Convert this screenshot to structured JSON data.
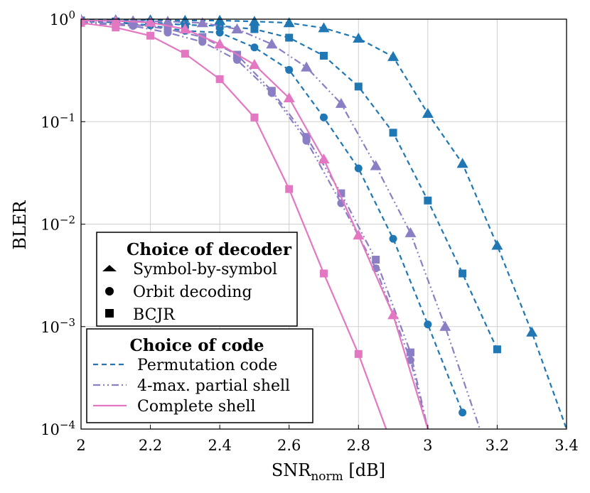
{
  "chart_data": {
    "type": "line",
    "xlabel": "SNR",
    "xlabel_subscript": "norm",
    "xlabel_unit": "[dB]",
    "ylabel": "BLER",
    "xlim": [
      2,
      3.4
    ],
    "ylim": [
      0.0001,
      1
    ],
    "yscale": "log",
    "grid": true,
    "x_ticks": [
      2,
      2.2,
      2.4,
      2.6,
      2.8,
      3,
      3.2,
      3.4
    ],
    "x_tick_labels": [
      "2",
      "2.2",
      "2.4",
      "2.6",
      "2.8",
      "3",
      "3.2",
      "3.4"
    ],
    "y_ticks": [
      1,
      0.1,
      0.01,
      0.001,
      0.0001
    ],
    "y_tick_labels": [
      {
        "base": "10",
        "exp": "0"
      },
      {
        "base": "10",
        "exp": "−1"
      },
      {
        "base": "10",
        "exp": "−2"
      },
      {
        "base": "10",
        "exp": "−3"
      },
      {
        "base": "10",
        "exp": "−4"
      }
    ],
    "colors": {
      "permutation": "#1f77b4",
      "partial_shell": "#8c7ec4",
      "complete_shell": "#e377c2",
      "permutation_marker": "#1f77b4",
      "partial_marker": "#8c7ec4",
      "complete_marker": "#e377c2"
    },
    "series": [
      {
        "code": "permutation",
        "decoder": "symbol",
        "line": "dashed",
        "x": [
          2.0,
          2.1,
          2.2,
          2.3,
          2.4,
          2.5,
          2.6,
          2.7,
          2.8,
          2.9,
          3.0,
          3.1,
          3.2,
          3.3,
          3.4
        ],
        "y": [
          0.99,
          0.98,
          0.98,
          0.97,
          0.97,
          0.95,
          0.92,
          0.82,
          0.65,
          0.43,
          0.12,
          0.039,
          0.0062,
          0.00088,
          0.0001
        ]
      },
      {
        "code": "permutation",
        "decoder": "orbit",
        "line": "dashed",
        "x": [
          2.0,
          2.1,
          2.2,
          2.3,
          2.4,
          2.5,
          2.6,
          2.7,
          2.8,
          2.9,
          3.0,
          3.1
        ],
        "y": [
          0.95,
          0.93,
          0.87,
          0.77,
          0.74,
          0.53,
          0.32,
          0.11,
          0.035,
          0.0072,
          0.00105,
          0.000145
        ]
      },
      {
        "code": "permutation",
        "decoder": "bcjr",
        "line": "dashed",
        "x": [
          2.0,
          2.1,
          2.2,
          2.3,
          2.4,
          2.5,
          2.6,
          2.7,
          2.8,
          2.9,
          3.0,
          3.1,
          3.2
        ],
        "y": [
          0.97,
          0.95,
          0.93,
          0.88,
          0.86,
          0.8,
          0.66,
          0.44,
          0.22,
          0.078,
          0.017,
          0.0033,
          0.0006
        ]
      },
      {
        "code": "partial_shell",
        "decoder": "symbol",
        "line": "dashdot",
        "x": [
          2.0,
          2.15,
          2.25,
          2.35,
          2.45,
          2.55,
          2.65,
          2.75,
          2.85,
          2.95,
          3.05,
          3.15
        ],
        "y": [
          0.97,
          0.96,
          0.95,
          0.92,
          0.8,
          0.57,
          0.34,
          0.15,
          0.037,
          0.0082,
          0.001,
          0.0001
        ]
      },
      {
        "code": "partial_shell",
        "decoder": "orbit",
        "line": "dashdot",
        "x": [
          2.0,
          2.15,
          2.25,
          2.35,
          2.45,
          2.55,
          2.65,
          2.75,
          2.85,
          2.95,
          3.0
        ],
        "y": [
          0.92,
          0.86,
          0.74,
          0.6,
          0.4,
          0.19,
          0.065,
          0.016,
          0.0037,
          0.00047,
          0.0001
        ]
      },
      {
        "code": "partial_shell",
        "decoder": "bcjr",
        "line": "dashdot",
        "x": [
          2.0,
          2.15,
          2.25,
          2.35,
          2.45,
          2.55,
          2.65,
          2.75,
          2.85,
          2.95,
          3.0
        ],
        "y": [
          0.94,
          0.89,
          0.8,
          0.67,
          0.45,
          0.2,
          0.071,
          0.02,
          0.0045,
          0.00056,
          0.0001
        ]
      },
      {
        "code": "complete_shell",
        "decoder": "symbol",
        "line": "solid",
        "x": [
          2.0,
          2.1,
          2.2,
          2.3,
          2.4,
          2.5,
          2.6,
          2.7,
          2.8,
          2.9,
          3.0
        ],
        "y": [
          0.97,
          0.96,
          0.93,
          0.8,
          0.57,
          0.36,
          0.17,
          0.043,
          0.0078,
          0.0013,
          0.0001
        ]
      },
      {
        "code": "complete_shell",
        "decoder": "bcjr",
        "line": "solid",
        "x": [
          2.0,
          2.1,
          2.2,
          2.3,
          2.4,
          2.5,
          2.6,
          2.7,
          2.8,
          2.88
        ],
        "y": [
          0.92,
          0.83,
          0.69,
          0.46,
          0.26,
          0.11,
          0.022,
          0.0033,
          0.00054,
          0.0001
        ]
      }
    ],
    "legend_decoder": {
      "title": "Choice of decoder",
      "entries": [
        {
          "marker": "triangle",
          "label": "Symbol-by-symbol"
        },
        {
          "marker": "circle",
          "label": "Orbit decoding"
        },
        {
          "marker": "square",
          "label": "BCJR"
        }
      ]
    },
    "legend_code": {
      "title": "Choice of code",
      "entries": [
        {
          "line": "dashed",
          "color_key": "permutation",
          "label": "Permutation code"
        },
        {
          "line": "dashdot",
          "color_key": "partial_shell",
          "label": "4-max. partial shell"
        },
        {
          "line": "solid",
          "color_key": "complete_shell",
          "label": "Complete shell"
        }
      ]
    }
  }
}
